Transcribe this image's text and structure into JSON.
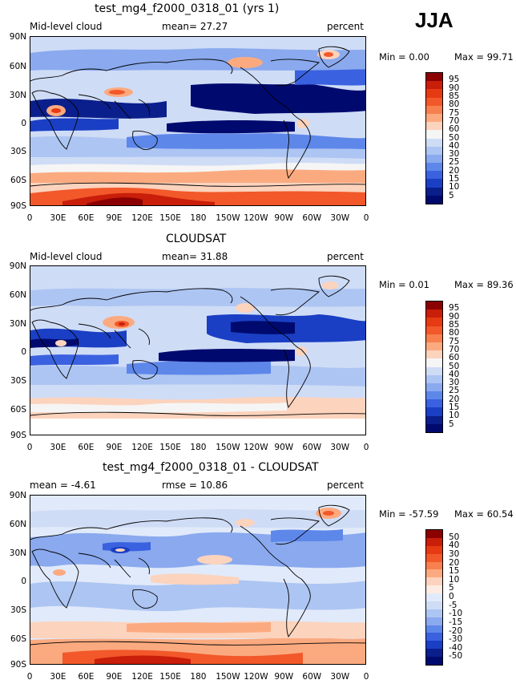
{
  "season": "JJA",
  "panels": [
    {
      "title": "test_mg4_f2000_0318_01 (yrs 1)",
      "left_label": "Mid-level cloud",
      "center_label": "mean=  27.27",
      "right_label": "percent",
      "min_text": "Min =    0.00",
      "max_text": "Max =   99.71",
      "colorbar_levels": [
        "95",
        "90",
        "85",
        "80",
        "75",
        "70",
        "60",
        "50",
        "40",
        "30",
        "25",
        "20",
        "15",
        "10",
        "5"
      ]
    },
    {
      "title": "CLOUDSAT",
      "left_label": "Mid-level cloud",
      "center_label": "mean=  31.88",
      "right_label": "percent",
      "min_text": "Min =    0.01",
      "max_text": "Max =   89.36",
      "colorbar_levels": [
        "95",
        "90",
        "85",
        "80",
        "75",
        "70",
        "60",
        "50",
        "40",
        "30",
        "25",
        "20",
        "15",
        "10",
        "5"
      ]
    },
    {
      "title": "test_mg4_f2000_0318_01 - CLOUDSAT",
      "left_label": "mean =  -4.61",
      "center_label": "rmse =  10.86",
      "right_label": "percent",
      "min_text": "Min = -57.59",
      "max_text": "Max =   60.54",
      "colorbar_levels": [
        "50",
        "40",
        "30",
        "20",
        "15",
        "10",
        "5",
        "0",
        "-5",
        "-10",
        "-15",
        "-20",
        "-30",
        "-40",
        "-50"
      ]
    }
  ],
  "axes": {
    "lat_ticks": [
      "90N",
      "60N",
      "30N",
      "0",
      "30S",
      "60S",
      "90S"
    ],
    "lon_ticks": [
      "0",
      "30E",
      "60E",
      "90E",
      "120E",
      "150E",
      "180",
      "150W",
      "120W",
      "90W",
      "60W",
      "30W",
      "0"
    ]
  },
  "colors": {
    "abs_scale": [
      "#8b0000",
      "#c81e0a",
      "#e63a12",
      "#f2582a",
      "#f7804e",
      "#fbaa80",
      "#fcd3bd",
      "#f5f5f5",
      "#cfdcf6",
      "#adc5f2",
      "#8aa9ee",
      "#5e87ea",
      "#3a61df",
      "#1a3fc4",
      "#0a1e8c",
      "#000a6e"
    ],
    "diff_scale": [
      "#8b0000",
      "#c81e0a",
      "#e63a12",
      "#f2582a",
      "#f7804e",
      "#fbaa80",
      "#fcd3bd",
      "#fdece2",
      "#e1eafa",
      "#cfdcf6",
      "#adc5f2",
      "#8aa9ee",
      "#5e87ea",
      "#3a61df",
      "#1a3fc4",
      "#0a1e8c",
      "#000a6e"
    ]
  },
  "chart_data": [
    {
      "type": "heatmap",
      "title": "test_mg4_f2000_0318_01 (yrs 1)",
      "variable": "Mid-level cloud",
      "units": "percent",
      "mean": 27.27,
      "min": 0.0,
      "max": 99.71,
      "contour_levels": [
        5,
        10,
        15,
        20,
        25,
        30,
        40,
        50,
        60,
        70,
        75,
        80,
        85,
        90,
        95
      ],
      "zones": [
        {
          "region": "Antarctic (70S-90S)",
          "level": 85
        },
        {
          "region": "Southern Ocean (50S-65S)",
          "level": 65
        },
        {
          "region": "Southern midlatitudes (35S-50S)",
          "level": 45
        },
        {
          "region": "Subtropical south (10S-30S)",
          "level": 18
        },
        {
          "region": "Equatorial Pacific (0-10S)",
          "level": 4
        },
        {
          "region": "Tibetan Plateau",
          "level": 70
        },
        {
          "region": "Central Africa",
          "level": 65
        },
        {
          "region": "Alaska / Greenland",
          "level": 62
        },
        {
          "region": "Northern subtropics (15N-40N)",
          "level": 10
        },
        {
          "region": "Arctic (70N-90N)",
          "level": 32
        }
      ]
    },
    {
      "type": "heatmap",
      "title": "CLOUDSAT",
      "variable": "Mid-level cloud",
      "units": "percent",
      "mean": 31.88,
      "min": 0.01,
      "max": 89.36,
      "contour_levels": [
        5,
        10,
        15,
        20,
        25,
        30,
        40,
        50,
        60,
        70,
        75,
        80,
        85,
        90,
        95
      ],
      "zones": [
        {
          "region": "Southern Ocean (50S-80S)",
          "level": 55
        },
        {
          "region": "Southern midlatitudes (35S-50S)",
          "level": 40
        },
        {
          "region": "Subtropical south (10S-30S)",
          "level": 20
        },
        {
          "region": "Equatorial Pacific (0-10S)",
          "level": 8
        },
        {
          "region": "Tibetan Plateau",
          "level": 70
        },
        {
          "region": "Northern subtropics (15N-40N)",
          "level": 15
        },
        {
          "region": "Arctic (60N-80N)",
          "level": 40
        }
      ]
    },
    {
      "type": "heatmap",
      "title": "test_mg4_f2000_0318_01 - CLOUDSAT",
      "variable": "Mid-level cloud difference",
      "units": "percent",
      "mean": -4.61,
      "rmse": 10.86,
      "min": -57.59,
      "max": 60.54,
      "contour_levels": [
        -50,
        -40,
        -30,
        -20,
        -15,
        -10,
        -5,
        0,
        5,
        10,
        15,
        20,
        30,
        40,
        50
      ],
      "zones": [
        {
          "region": "Antarctic (70S-90S)",
          "level": 30
        },
        {
          "region": "Southern Ocean (55S-70S)",
          "level": 10
        },
        {
          "region": "Tropics / subtropics",
          "level": -10
        },
        {
          "region": "Northern midlatitudes",
          "level": -15
        },
        {
          "region": "Greenland / Alaska",
          "level": 15
        }
      ]
    }
  ]
}
